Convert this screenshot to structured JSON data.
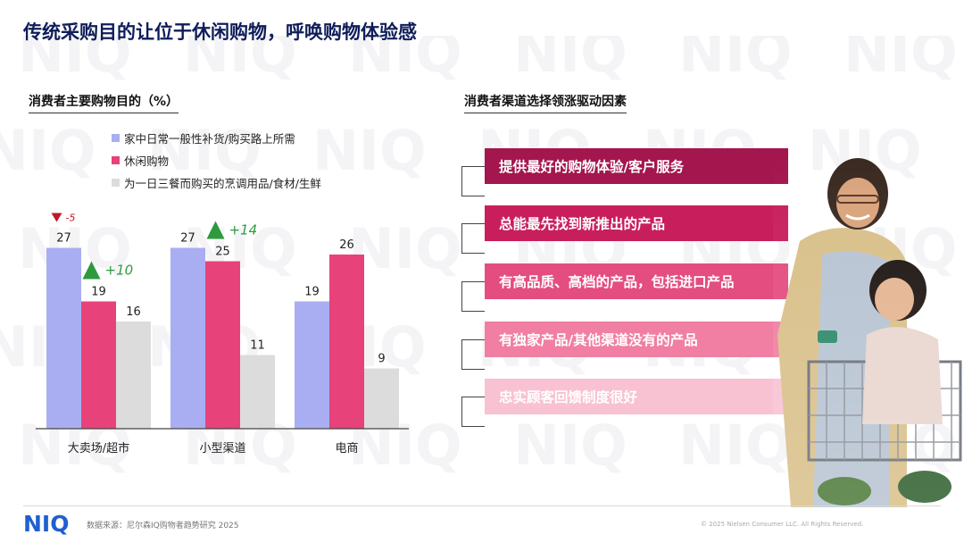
{
  "header": {
    "title": "传统采购目的让位于休闲购物，呼唤购物体验感"
  },
  "watermark": {
    "text": "NIQ"
  },
  "left_panel": {
    "title": "消费者主要购物目的（%）"
  },
  "right_panel": {
    "title": "消费者渠道选择领涨驱动因素",
    "drivers": [
      {
        "label": "提供最好的购物体验/客户服务",
        "color": "#a3174e"
      },
      {
        "label": "总能最先找到新推出的产品",
        "color": "#c81f5c"
      },
      {
        "label": "有高品质、高档的产品，包括进口产品",
        "color": "#e44d7f"
      },
      {
        "label": "有独家产品/其他渠道没有的产品",
        "color": "#f07fa3"
      },
      {
        "label": "忠实顾客回馈制度很好",
        "color": "#f8c2d3"
      }
    ]
  },
  "chart_data": {
    "type": "bar",
    "title": "消费者主要购物目的（%）",
    "categories": [
      "大卖场/超市",
      "小型渠道",
      "电商"
    ],
    "series": [
      {
        "name": "家中日常一般性补货/购买路上所需",
        "values": [
          27,
          27,
          19
        ],
        "color": "#a9aef2"
      },
      {
        "name": "休闲购物",
        "values": [
          19,
          25,
          26
        ],
        "color": "#e8427a"
      },
      {
        "name": "为一日三餐而购买的烹调用品/食材/生鲜",
        "values": [
          16,
          11,
          9
        ],
        "color": "#dcdcdc"
      }
    ],
    "annotations": [
      {
        "category": "大卖场/超市",
        "series": "家中日常一般性补货/购买路上所需",
        "direction": "down",
        "text": "-5",
        "color": "#c0182a"
      },
      {
        "category": "大卖场/超市",
        "series": "休闲购物",
        "direction": "up",
        "text": "+10",
        "color": "#2e9a3e"
      },
      {
        "category": "小型渠道",
        "series": "休闲购物",
        "direction": "up",
        "text": "+14",
        "color": "#2e9a3e"
      }
    ],
    "ylim": [
      0,
      30
    ],
    "grid": false,
    "legend_position": "top"
  },
  "footer": {
    "logo": "NIQ",
    "source": "数据来源：尼尔森IQ购物者趋势研究 2025",
    "copyright": "© 2025 Nielsen Consumer LLC. All Rights Reserved."
  }
}
